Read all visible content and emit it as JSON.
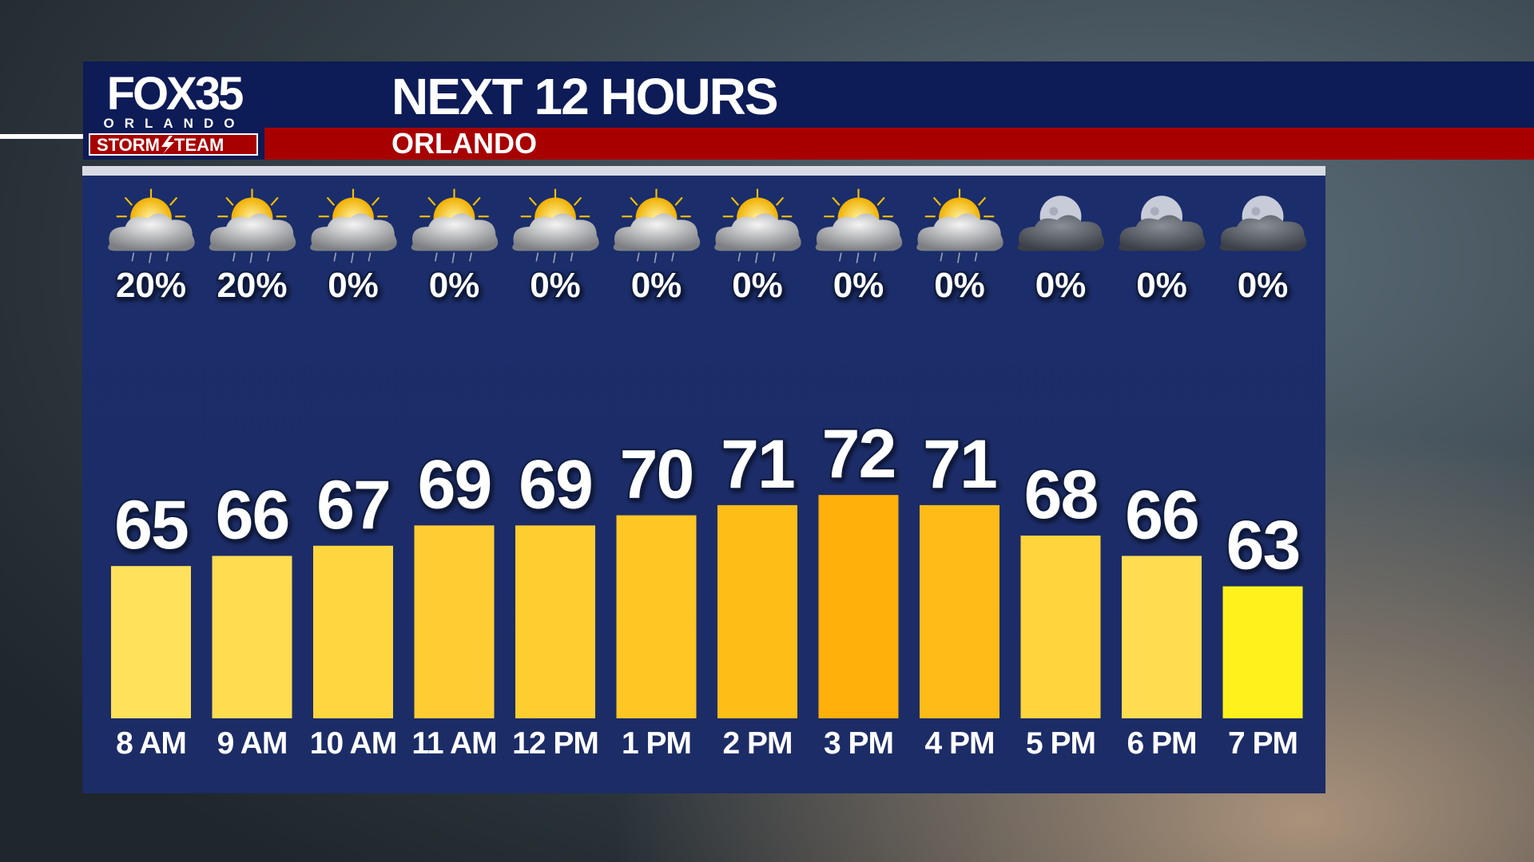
{
  "logo": {
    "brand": "FOX35",
    "city": "ORLANDO",
    "team_left": "STORM",
    "team_right": "TEAM"
  },
  "chart_data": {
    "type": "bar",
    "title": "NEXT 12 HOURS",
    "subtitle": "ORLANDO",
    "categories": [
      "8 AM",
      "9 AM",
      "10 AM",
      "11 AM",
      "12 PM",
      "1 PM",
      "2 PM",
      "3 PM",
      "4 PM",
      "5 PM",
      "6 PM",
      "7 PM"
    ],
    "values": [
      65,
      66,
      67,
      69,
      69,
      70,
      71,
      72,
      71,
      68,
      66,
      63
    ],
    "colors": [
      "#ffe15c",
      "#ffdc50",
      "#ffd640",
      "#ffcd33",
      "#ffcd30",
      "#ffc624",
      "#ffbd17",
      "#ffb00a",
      "#ffbb17",
      "#ffd43c",
      "#ffdc50",
      "#fff21c"
    ],
    "ylim": [
      50,
      75
    ],
    "precipitation_chance": {
      "values": [
        20,
        20,
        0,
        0,
        0,
        0,
        0,
        0,
        0,
        0,
        0,
        0
      ],
      "value_labels": [
        "20%",
        "20%",
        "0%",
        "0%",
        "0%",
        "0%",
        "0%",
        "0%",
        "0%",
        "0%",
        "0%",
        "0%"
      ]
    }
  }
}
